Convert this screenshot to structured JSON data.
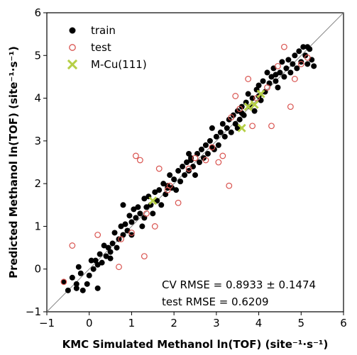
{
  "chart_data": {
    "type": "scatter",
    "xlabel": "KMC Simulated Methanol ln(TOF) (site⁻¹·s⁻¹)",
    "ylabel": "Predicted Methanol ln(TOF) (site⁻¹·s⁻¹)",
    "xlim": [
      -1,
      6
    ],
    "ylim": [
      -1,
      6
    ],
    "x_ticks": [
      "−1",
      "0",
      "1",
      "2",
      "3",
      "4",
      "5",
      "6"
    ],
    "y_ticks": [
      "−1",
      "0",
      "1",
      "2",
      "3",
      "4",
      "5",
      "6"
    ],
    "grid": false,
    "legend_position": "top-left",
    "parity_line": true,
    "series": [
      {
        "name": "train",
        "marker": "filled-circle",
        "color": "#000000",
        "points": [
          [
            -0.6,
            -0.3
          ],
          [
            -0.5,
            -0.5
          ],
          [
            -0.4,
            -0.2
          ],
          [
            -0.3,
            -0.45
          ],
          [
            -0.2,
            -0.1
          ],
          [
            -0.15,
            -0.5
          ],
          [
            -0.05,
            -0.35
          ],
          [
            0.0,
            -0.15
          ],
          [
            0.05,
            0.2
          ],
          [
            -0.25,
            0.05
          ],
          [
            0.1,
            0.0
          ],
          [
            0.15,
            0.2
          ],
          [
            0.2,
            0.1
          ],
          [
            0.25,
            0.35
          ],
          [
            0.3,
            0.15
          ],
          [
            0.35,
            0.55
          ],
          [
            0.4,
            0.3
          ],
          [
            0.45,
            0.5
          ],
          [
            0.5,
            0.4
          ],
          [
            0.55,
            0.6
          ],
          [
            0.6,
            0.85
          ],
          [
            0.65,
            0.5
          ],
          [
            0.7,
            0.7
          ],
          [
            0.75,
            1.0
          ],
          [
            0.8,
            0.8
          ],
          [
            0.85,
            1.05
          ],
          [
            0.9,
            0.9
          ],
          [
            0.95,
            1.25
          ],
          [
            1.0,
            1.1
          ],
          [
            1.05,
            1.4
          ],
          [
            1.1,
            1.2
          ],
          [
            1.15,
            1.45
          ],
          [
            1.2,
            1.3
          ],
          [
            1.25,
            1.0
          ],
          [
            1.3,
            1.2
          ],
          [
            1.35,
            1.45
          ],
          [
            1.4,
            1.7
          ],
          [
            1.45,
            1.5
          ],
          [
            1.5,
            1.3
          ],
          [
            1.55,
            1.8
          ],
          [
            1.6,
            1.6
          ],
          [
            1.65,
            1.85
          ],
          [
            1.7,
            1.5
          ],
          [
            1.75,
            2.0
          ],
          [
            1.8,
            1.75
          ],
          [
            1.85,
            1.95
          ],
          [
            1.9,
            2.2
          ],
          [
            1.95,
            1.9
          ],
          [
            2.0,
            2.1
          ],
          [
            2.05,
            1.85
          ],
          [
            2.1,
            2.3
          ],
          [
            2.15,
            2.05
          ],
          [
            2.2,
            2.4
          ],
          [
            2.25,
            2.2
          ],
          [
            2.3,
            2.5
          ],
          [
            2.35,
            2.3
          ],
          [
            2.4,
            2.6
          ],
          [
            2.45,
            2.4
          ],
          [
            2.5,
            2.2
          ],
          [
            2.55,
            2.7
          ],
          [
            2.6,
            2.5
          ],
          [
            2.65,
            2.8
          ],
          [
            2.7,
            2.6
          ],
          [
            2.75,
            2.9
          ],
          [
            2.8,
            2.7
          ],
          [
            2.85,
            3.0
          ],
          [
            2.9,
            3.3
          ],
          [
            2.95,
            2.8
          ],
          [
            3.0,
            3.1
          ],
          [
            3.05,
            2.9
          ],
          [
            3.1,
            3.2
          ],
          [
            3.15,
            3.4
          ],
          [
            3.2,
            3.1
          ],
          [
            3.25,
            3.3
          ],
          [
            3.3,
            3.5
          ],
          [
            3.35,
            3.2
          ],
          [
            3.4,
            3.6
          ],
          [
            3.45,
            3.4
          ],
          [
            3.5,
            3.7
          ],
          [
            3.55,
            3.5
          ],
          [
            3.6,
            3.8
          ],
          [
            3.65,
            3.6
          ],
          [
            3.7,
            3.9
          ],
          [
            3.75,
            4.1
          ],
          [
            3.8,
            3.8
          ],
          [
            3.85,
            4.0
          ],
          [
            3.9,
            3.7
          ],
          [
            3.95,
            4.2
          ],
          [
            4.0,
            4.3
          ],
          [
            4.05,
            3.95
          ],
          [
            4.1,
            4.4
          ],
          [
            4.15,
            4.15
          ],
          [
            4.2,
            4.6
          ],
          [
            4.25,
            4.35
          ],
          [
            4.3,
            4.5
          ],
          [
            4.35,
            4.7
          ],
          [
            4.4,
            4.4
          ],
          [
            4.45,
            4.25
          ],
          [
            4.5,
            4.6
          ],
          [
            4.55,
            4.85
          ],
          [
            4.6,
            4.5
          ],
          [
            4.65,
            4.7
          ],
          [
            4.7,
            4.9
          ],
          [
            4.75,
            4.6
          ],
          [
            4.8,
            4.8
          ],
          [
            4.85,
            5.0
          ],
          [
            4.9,
            4.7
          ],
          [
            4.95,
            5.1
          ],
          [
            5.0,
            4.85
          ],
          [
            5.05,
            5.2
          ],
          [
            5.1,
            5.0
          ],
          [
            5.15,
            4.8
          ],
          [
            5.2,
            5.15
          ],
          [
            5.25,
            4.9
          ],
          [
            5.3,
            4.75
          ],
          [
            5.15,
            5.2
          ],
          [
            4.0,
            4.05
          ],
          [
            3.5,
            3.3
          ],
          [
            2.9,
            2.85
          ],
          [
            2.35,
            2.7
          ],
          [
            1.0,
            0.8
          ],
          [
            0.8,
            1.5
          ],
          [
            1.3,
            1.65
          ],
          [
            2.4,
            2.55
          ],
          [
            3.6,
            3.65
          ],
          [
            4.4,
            4.55
          ],
          [
            0.5,
            0.25
          ],
          [
            0.2,
            -0.45
          ],
          [
            -0.3,
            -0.35
          ],
          [
            1.85,
            1.9
          ]
        ]
      },
      {
        "name": "test",
        "marker": "open-circle",
        "color": "#d9534f",
        "points": [
          [
            -0.6,
            -0.3
          ],
          [
            -0.4,
            0.55
          ],
          [
            0.2,
            0.8
          ],
          [
            0.7,
            0.05
          ],
          [
            0.75,
            0.7
          ],
          [
            1.0,
            0.85
          ],
          [
            1.1,
            2.65
          ],
          [
            1.2,
            2.55
          ],
          [
            1.3,
            0.3
          ],
          [
            1.35,
            1.3
          ],
          [
            1.55,
            1.0
          ],
          [
            1.65,
            2.35
          ],
          [
            1.85,
            1.85
          ],
          [
            1.9,
            1.95
          ],
          [
            2.1,
            1.55
          ],
          [
            2.35,
            2.35
          ],
          [
            2.75,
            2.55
          ],
          [
            2.9,
            2.85
          ],
          [
            3.05,
            2.5
          ],
          [
            3.15,
            2.65
          ],
          [
            3.3,
            1.95
          ],
          [
            3.35,
            3.55
          ],
          [
            3.45,
            4.05
          ],
          [
            3.55,
            3.75
          ],
          [
            3.75,
            4.45
          ],
          [
            3.85,
            3.35
          ],
          [
            4.2,
            4.25
          ],
          [
            4.3,
            3.35
          ],
          [
            4.45,
            4.75
          ],
          [
            4.6,
            5.2
          ],
          [
            4.75,
            3.8
          ],
          [
            4.85,
            4.45
          ],
          [
            5.0,
            4.8
          ],
          [
            5.15,
            4.95
          ],
          [
            3.95,
            4.0
          ],
          [
            2.5,
            2.6
          ]
        ]
      },
      {
        "name": "M-Cu(111)",
        "marker": "x",
        "color": "#b5cf45",
        "points": [
          [
            1.5,
            1.6
          ],
          [
            3.6,
            3.3
          ],
          [
            3.9,
            3.85
          ],
          [
            4.05,
            4.1
          ],
          [
            3.75,
            3.8
          ]
        ]
      }
    ],
    "annotations": [
      "CV RMSE = 0.8933 ± 0.1474",
      "test RMSE = 0.6209"
    ]
  }
}
